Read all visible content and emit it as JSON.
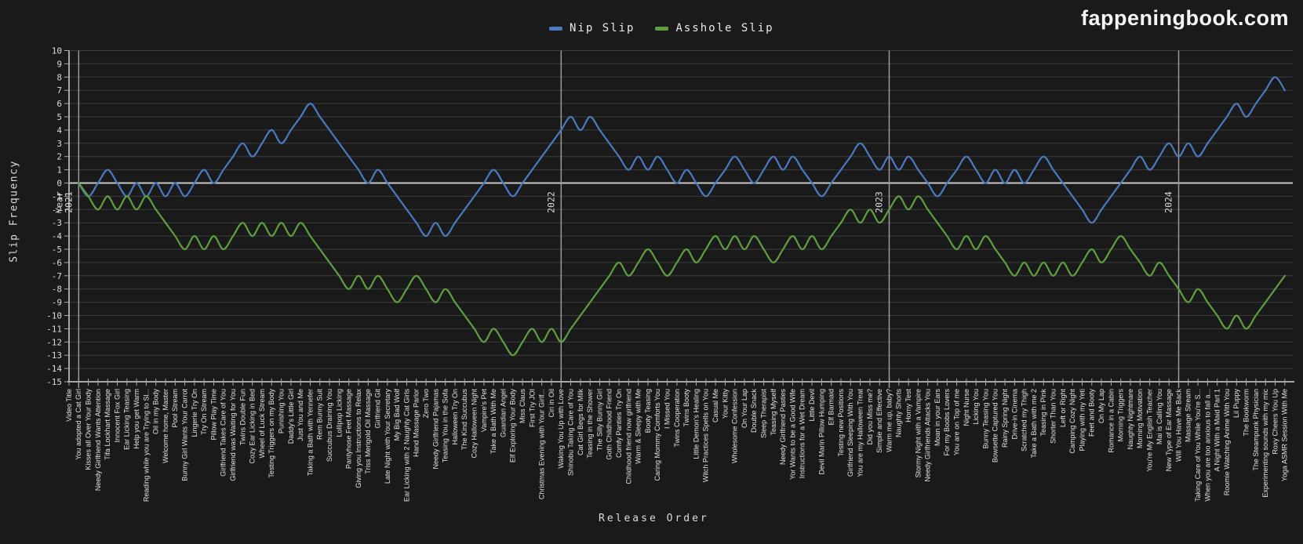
{
  "page": {
    "background": "#1a1a1a"
  },
  "header": {
    "logo_text": "fappeningbook.com"
  },
  "legend": [
    {
      "label": "Nip Slip",
      "color": "#4b79bd"
    },
    {
      "label": "Asshole Slip",
      "color": "#5f9e3e"
    }
  ],
  "chart_data": {
    "type": "line",
    "title": "",
    "xlabel": "Release Order",
    "ylabel": "Slip Frequency",
    "ylim": [
      -15,
      10
    ],
    "ytick_step": 1,
    "grid": true,
    "smooth": true,
    "legend_position": "top-center",
    "colors": {
      "background": "#1a1a1a",
      "gridline": "#3d3d3d",
      "zero_line": "#c8c8c8",
      "axis_line": "#a8a8a8",
      "year_line": "#9a9a9a",
      "tick_text": "#d9d9d9",
      "x_tick_text": "#e2e2e2"
    },
    "categories": [
      "Video Title",
      "You adopted a Cat Girl",
      "Kisses all Over Your Body",
      "Needy Girlfriend Wants Attention",
      "Tifa Lockhart Massage",
      "Innocent Fox Girl",
      "Ear Licking Teasing",
      "Help you get Warm",
      "Reading while you are Trying to Sl...",
      "Oil in my Body",
      "Welcome home, Master",
      "Pool Stream",
      "Bunny Girl Wants Your Carrot",
      "Lingerie Try On",
      "Try On Stream",
      "Pillow Play Time",
      "Girlfriend Takes Care of You",
      "Girlfriend was Waiting for You",
      "Twins Double Fun",
      "Cozy Ear Licking in Bed",
      "Wheel of Luck Stream",
      "Testing Triggers on my Body",
      "Punishing You",
      "Daddy's Little Girl",
      "Just You and Me",
      "Taking a Bath with Yennefer",
      "Rem Bunny Suit",
      "Succubus Draining You",
      "Lollipop Licking",
      "Pantyhose Feet Massage",
      "Giving you Instructions to Relax",
      "Triss Merigold Oil Massage",
      "Girlfriend Git",
      "Late Night with Your Secretary",
      "My Big Bad Wolf",
      "Ear Licking with 2 Naughty Cat Girls",
      "Hand Massage Parlor",
      "Zero Two",
      "Needy Girlfriend Pajamas",
      "Teasing You in the Sofa",
      "Halloween Try On",
      "The Kind Succubus",
      "Cozy Halloween Night",
      "Vampire's Pet",
      "Take a Bath With Me",
      "Guardian Angel",
      "Elf Exploring Your Body",
      "Miss Claus",
      "First Try JOI",
      "Christmas Evening with Your Girlf...",
      "Ciri in Oil",
      "Waking You Up with Love",
      "Shinobu Taking Care of You",
      "Cat Girl Begs for Milk",
      "Teasing in the Shower",
      "The Silly Bunny Girl",
      "Goth Childhood Friend",
      "Comfy Panties Try On",
      "Childhood friend now girlfriend",
      "Warm & Sleepy with Me",
      "Booty Teasing",
      "Caring Mommy Comforts You",
      "I Missed You",
      "Twins Cooperation",
      "Twins Booty",
      "Little Demon's Healing",
      "Witch Practices Spells on You",
      "Casual Me",
      "Your Kitty",
      "Wholesome Confession",
      "On Your Lap",
      "Double Snack",
      "Sleep Therapist",
      "Teasing Myself",
      "Needy Girlfriend Pasties",
      "Yor Wants to be a Good Wife",
      "Instructions for a Wet Dream",
      "Little Devil",
      "Devil Marin Pillow Humping",
      "Elf Barmaid",
      "Testing new Positions",
      "Girlfriend Sleeping With You",
      "You are my Halloween Treat",
      "Did you Miss me?",
      "Simple and Effective",
      "Warm me up, baby?",
      "Naughty Shorts",
      "Horny Test",
      "Stormy Night with a Vampire",
      "Needy Girlfriends Attacks You",
      "Moan in your Ears",
      "For my Boobs Lovers",
      "You are on Top of me",
      "Night Nurse",
      "Licking You",
      "Bunny Teasing You",
      "Bowsette Captured You",
      "Rainy Spring Night",
      "Drive-in Cinema",
      "Scratched my Thigh",
      "Take a Bath with me 2",
      "Teasing in Pink",
      "Shorter Than You",
      "Left or Right",
      "Camping Cozy Night",
      "Playing with my Yeti",
      "Feet and Booty",
      "On My Lap",
      "Romance in a Cabin",
      "Morning Triggers",
      "Naughty Nightmare",
      "Morning Motivation",
      "You're My English Teacher",
      "Mai is Calling You",
      "New Type of Ear Massage",
      "Will You Have Me Back",
      "Massage Stream",
      "Taking Care of You While You're S...",
      "When you are too anxious to fall a...",
      "A Night With a Maid Part 1",
      "Roomie Watching Anime With You",
      "Lil Puppy",
      "The Bookworm",
      "The Steampunk Physician",
      "Experimenting sounds with my mic",
      "Roxy Cheers You Up",
      "Yoga ASMR Session With Me"
    ],
    "series": [
      {
        "name": "Nip Slip",
        "color": "#4b79bd",
        "values": [
          null,
          0,
          -1,
          0,
          1,
          0,
          -1,
          0,
          -1,
          0,
          -1,
          0,
          -1,
          0,
          1,
          0,
          1,
          2,
          3,
          2,
          3,
          4,
          3,
          4,
          5,
          6,
          5,
          4,
          3,
          2,
          1,
          0,
          1,
          0,
          -1,
          -2,
          -3,
          -4,
          -3,
          -4,
          -3,
          -2,
          -1,
          0,
          1,
          0,
          -1,
          0,
          1,
          2,
          3,
          4,
          5,
          4,
          5,
          4,
          3,
          2,
          1,
          2,
          1,
          2,
          1,
          0,
          1,
          0,
          -1,
          0,
          1,
          2,
          1,
          0,
          1,
          2,
          1,
          2,
          1,
          0,
          -1,
          0,
          1,
          2,
          3,
          2,
          1,
          2,
          1,
          2,
          1,
          0,
          -1,
          0,
          1,
          2,
          1,
          0,
          1,
          0,
          1,
          0,
          1,
          2,
          1,
          0,
          -1,
          -2,
          -3,
          -2,
          -1,
          0,
          1,
          2,
          1,
          2,
          3,
          2,
          3,
          2,
          3,
          4,
          5,
          6,
          5,
          6,
          7,
          8,
          7
        ]
      },
      {
        "name": "Asshole Slip",
        "color": "#5f9e3e",
        "values": [
          null,
          0,
          -1,
          -2,
          -1,
          -2,
          -1,
          -2,
          -1,
          -2,
          -3,
          -4,
          -5,
          -4,
          -5,
          -4,
          -5,
          -4,
          -3,
          -4,
          -3,
          -4,
          -3,
          -4,
          -3,
          -4,
          -5,
          -6,
          -7,
          -8,
          -7,
          -8,
          -7,
          -8,
          -9,
          -8,
          -7,
          -8,
          -9,
          -8,
          -9,
          -10,
          -11,
          -12,
          -11,
          -12,
          -13,
          -12,
          -11,
          -12,
          -11,
          -12,
          -11,
          -10,
          -9,
          -8,
          -7,
          -6,
          -7,
          -6,
          -5,
          -6,
          -7,
          -6,
          -5,
          -6,
          -5,
          -4,
          -5,
          -4,
          -5,
          -4,
          -5,
          -6,
          -5,
          -4,
          -5,
          -4,
          -5,
          -4,
          -3,
          -2,
          -3,
          -2,
          -3,
          -2,
          -1,
          -2,
          -1,
          -2,
          -3,
          -4,
          -5,
          -4,
          -5,
          -4,
          -5,
          -6,
          -7,
          -6,
          -7,
          -6,
          -7,
          -6,
          -7,
          -6,
          -5,
          -6,
          -5,
          -4,
          -5,
          -6,
          -7,
          -6,
          -7,
          -8,
          -9,
          -8,
          -9,
          -10,
          -11,
          -10,
          -11,
          -10,
          -9,
          -8,
          -7
        ]
      }
    ],
    "year_markers": [
      {
        "prefix": "Year",
        "label": "2021",
        "category_index": 1
      },
      {
        "prefix": "",
        "label": "2022",
        "category_index": 51
      },
      {
        "prefix": "",
        "label": "2023",
        "category_index": 85
      },
      {
        "prefix": "",
        "label": "2024",
        "category_index": 115
      }
    ]
  }
}
